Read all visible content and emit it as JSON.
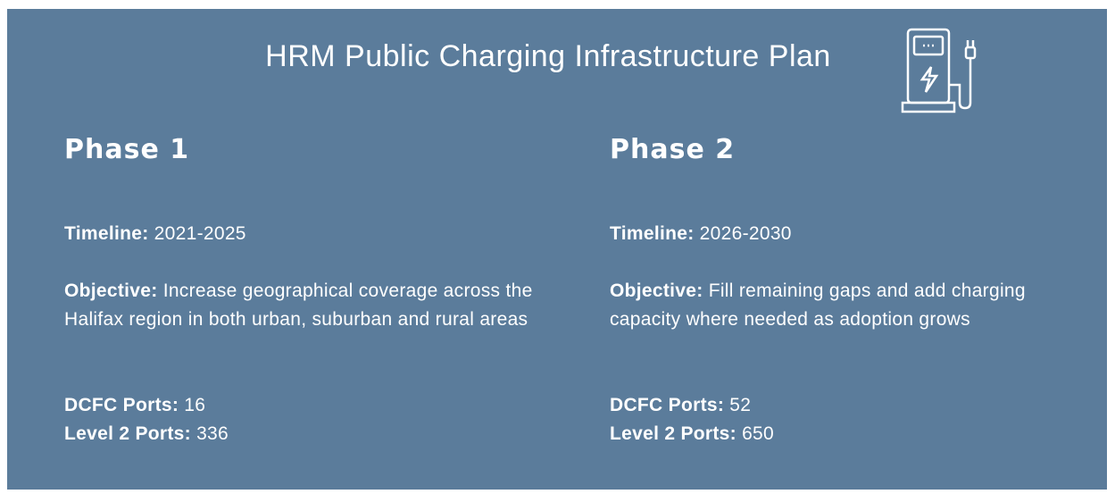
{
  "title": "HRM Public Charging Infrastructure Plan",
  "phases": [
    {
      "heading": "Phase 1",
      "timeline_label": "Timeline:",
      "timeline": "2021-2025",
      "objective_label": "Objective:",
      "objective": "Increase geographical coverage across the Halifax region in both urban, suburban and rural areas",
      "dcfc_label": "DCFC Ports:",
      "dcfc": 16,
      "level2_label": "Level 2 Ports:",
      "level2": 336
    },
    {
      "heading": "Phase 2",
      "timeline_label": "Timeline:",
      "timeline": "2026-2030",
      "objective_label": "Objective:",
      "objective": "Fill remaining gaps and add charging capacity where needed as adoption grows",
      "dcfc_label": "DCFC Ports:",
      "dcfc": 52,
      "level2_label": "Level 2 Ports:",
      "level2": 650
    }
  ]
}
